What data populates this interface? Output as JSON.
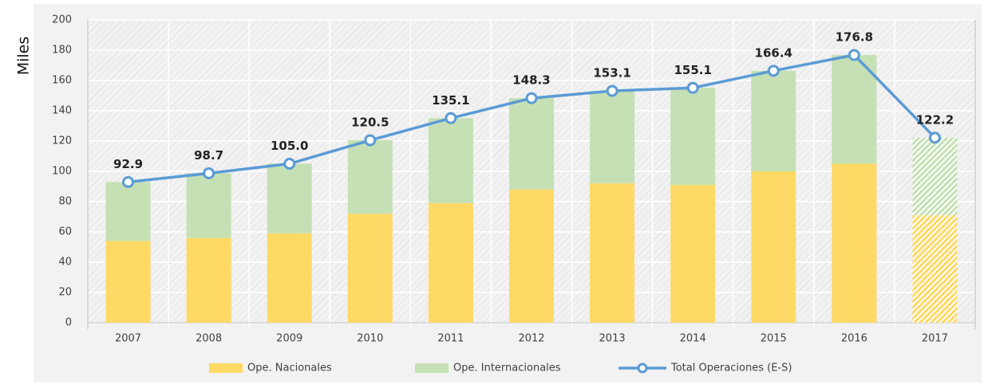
{
  "chart_data": {
    "type": "bar",
    "stacked": true,
    "ylabel": "Miles",
    "categories": [
      "2007",
      "2008",
      "2009",
      "2010",
      "2011",
      "2012",
      "2013",
      "2014",
      "2015",
      "2016",
      "2017"
    ],
    "series": [
      {
        "name": "Ope. Nacionales",
        "type": "bar",
        "color": "#ffd966",
        "values": [
          54,
          56,
          59,
          72,
          79,
          88,
          92,
          91,
          100,
          105,
          71
        ]
      },
      {
        "name": "Ope. Internacionales",
        "type": "bar",
        "color": "#c5e0b4",
        "values": [
          38.9,
          42.7,
          46,
          48.5,
          56.1,
          60.3,
          61.1,
          64.1,
          66.4,
          71.8,
          51.2
        ]
      },
      {
        "name": "Total Operaciones (E-S)",
        "type": "line",
        "color": "#5b9bd5",
        "values": [
          92.9,
          98.7,
          105,
          120.5,
          135.1,
          148.3,
          153.1,
          155.1,
          166.4,
          176.8,
          122.2
        ],
        "value_labels": [
          "92.9",
          "98.7",
          "105.0",
          "120.5",
          "135.1",
          "148.3",
          "153.1",
          "155.1",
          "166.4",
          "176.8",
          "122.2"
        ]
      }
    ],
    "hatched": [
      false,
      false,
      false,
      false,
      false,
      false,
      false,
      false,
      false,
      false,
      true
    ],
    "ylim": [
      0,
      200
    ],
    "yticks": [
      0,
      20,
      40,
      60,
      80,
      100,
      120,
      140,
      160,
      180,
      200
    ],
    "grid": true,
    "legend": "bottom"
  }
}
